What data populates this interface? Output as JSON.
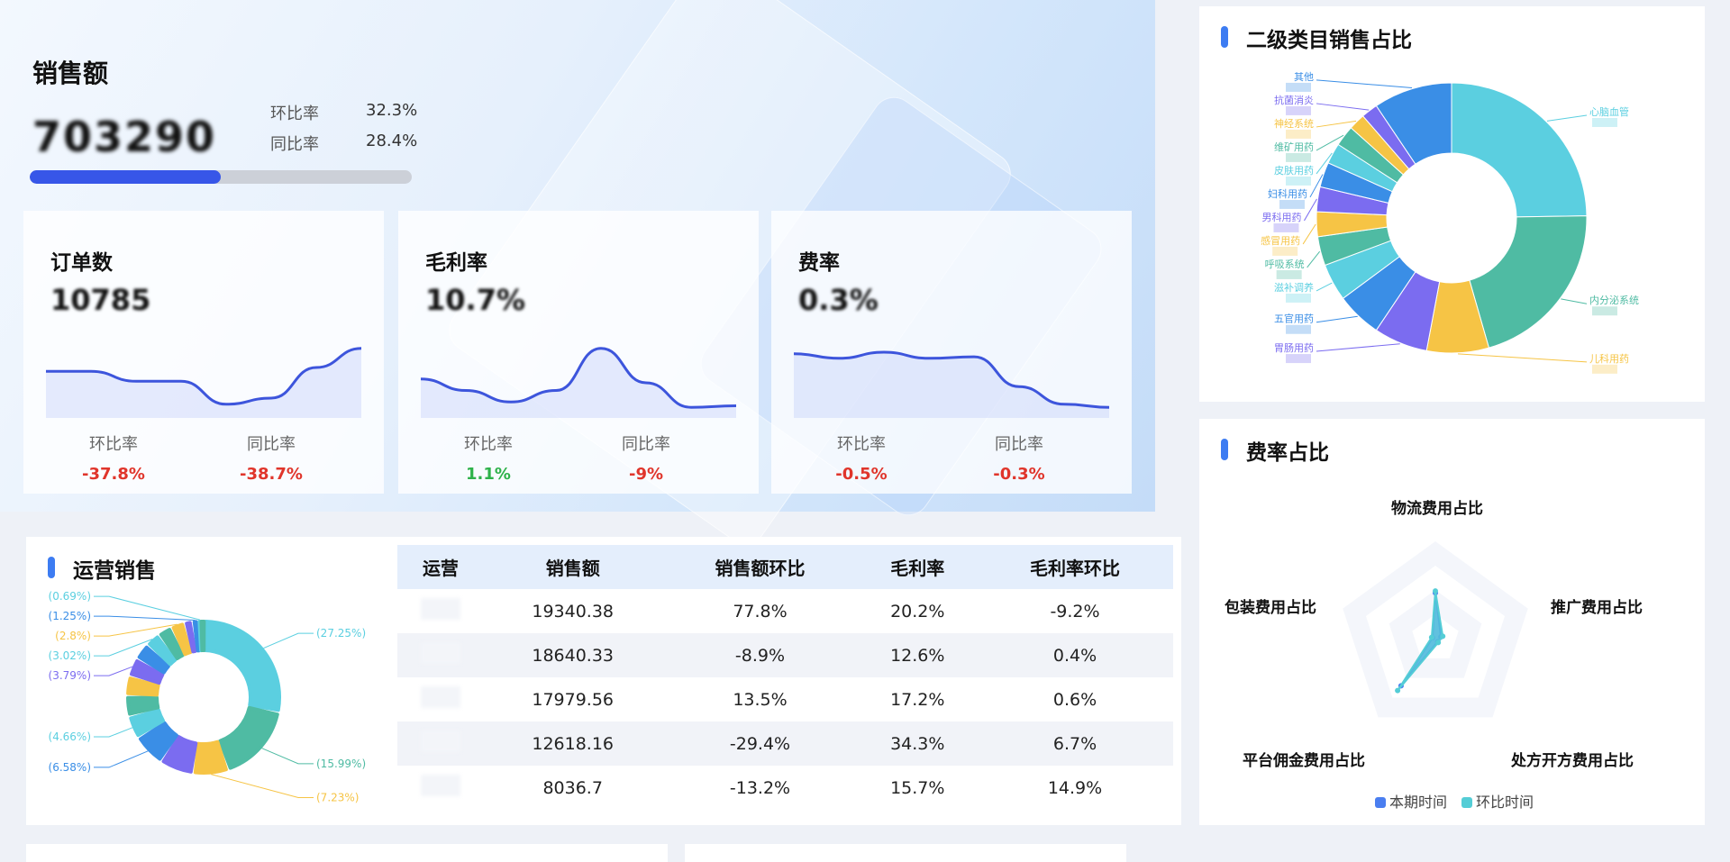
{
  "hero": {
    "title": "销售额",
    "value": "703290",
    "mom_label": "环比率",
    "mom_value": "32.3%",
    "yoy_label": "同比率",
    "yoy_value": "28.4%",
    "progress_percent": 50
  },
  "kpi_cards": [
    {
      "title": "订单数",
      "value": "10785",
      "mom_label": "环比率",
      "mom_value": "-37.8%",
      "mom_trend": "down",
      "yoy_label": "同比率",
      "yoy_value": "-38.7%",
      "yoy_trend": "down",
      "spark": [
        0.55,
        0.55,
        0.42,
        0.42,
        0.12,
        0.2,
        0.6,
        0.85
      ]
    },
    {
      "title": "毛利率",
      "value": "10.7%",
      "mom_label": "环比率",
      "mom_value": "1.1%",
      "mom_trend": "up",
      "yoy_label": "同比率",
      "yoy_value": "-9%",
      "yoy_trend": "down",
      "spark": [
        0.45,
        0.3,
        0.15,
        0.3,
        0.85,
        0.4,
        0.08,
        0.1
      ]
    },
    {
      "title": "费率",
      "value": "0.3%",
      "mom_label": "环比率",
      "mom_value": "-0.5%",
      "mom_trend": "down",
      "yoy_label": "同比率",
      "yoy_value": "-0.3%",
      "yoy_trend": "down",
      "spark": [
        0.78,
        0.72,
        0.8,
        0.72,
        0.74,
        0.35,
        0.12,
        0.08
      ]
    }
  ],
  "ops": {
    "title": "运营销售",
    "columns": [
      "运营",
      "销售额",
      "销售额环比",
      "毛利率",
      "毛利率环比"
    ],
    "rows": [
      [
        "",
        "19340.38",
        "77.8%",
        "20.2%",
        "-9.2%"
      ],
      [
        "",
        "18640.33",
        "-8.9%",
        "12.6%",
        "0.4%"
      ],
      [
        "",
        "17979.56",
        "13.5%",
        "17.2%",
        "0.6%"
      ],
      [
        "",
        "12618.16",
        "-29.4%",
        "34.3%",
        "6.7%"
      ],
      [
        "",
        "8036.7",
        "-13.2%",
        "15.7%",
        "14.9%"
      ]
    ]
  },
  "chart_data": [
    {
      "type": "pie",
      "variant": "donut",
      "values": [
        27.25,
        15.99,
        7.23,
        6.9,
        6.58,
        4.66,
        4.2,
        4.0,
        3.79,
        3.4,
        3.02,
        2.9,
        2.8,
        1.6,
        1.25,
        0.69,
        0.4
      ],
      "labels": [
        "(27.25%)",
        "(15.99%)",
        "(7.23%)",
        "",
        "(6.58%)",
        "(4.66%)",
        "",
        "",
        "(3.79%)",
        "",
        "(3.02%)",
        "",
        "(2.8%)",
        "",
        "(1.25%)",
        "(0.69%)",
        ""
      ]
    },
    {
      "type": "pie",
      "variant": "donut",
      "title": "二级类目销售占比",
      "categories": [
        "心脑血管",
        "内分泌系统",
        "儿科用药",
        "胃肠用药",
        "五官用药",
        "滋补调养",
        "呼吸系统",
        "感冒用药",
        "男科用药",
        "妇科用药",
        "皮肤用药",
        "维矿用药",
        "神经系统",
        "抗菌消炎",
        "其他"
      ],
      "values": [
        25,
        21,
        7.5,
        6.5,
        5.5,
        4.5,
        3.5,
        3,
        3,
        3,
        2.5,
        2.5,
        2,
        2,
        9.5
      ]
    },
    {
      "type": "radar",
      "title": "费率占比",
      "axes": [
        "物流费用占比",
        "推广费用占比",
        "处方开方费用占比",
        "平台佣金费用占比",
        "包装费用占比"
      ],
      "series": [
        {
          "name": "本期时间",
          "values": [
            0.47,
            0.06,
            0.04,
            0.6,
            0.03
          ]
        },
        {
          "name": "环比时间",
          "values": [
            0.49,
            0.08,
            0.05,
            0.66,
            0.04
          ]
        }
      ]
    }
  ],
  "colors": {
    "palette": [
      "#5bcfe0",
      "#4fbba3",
      "#f6c445",
      "#7b6cf0",
      "#3a8ee6"
    ],
    "accent": "#3756e8",
    "current": "#4a7ef0",
    "previous": "#54cdd6"
  }
}
